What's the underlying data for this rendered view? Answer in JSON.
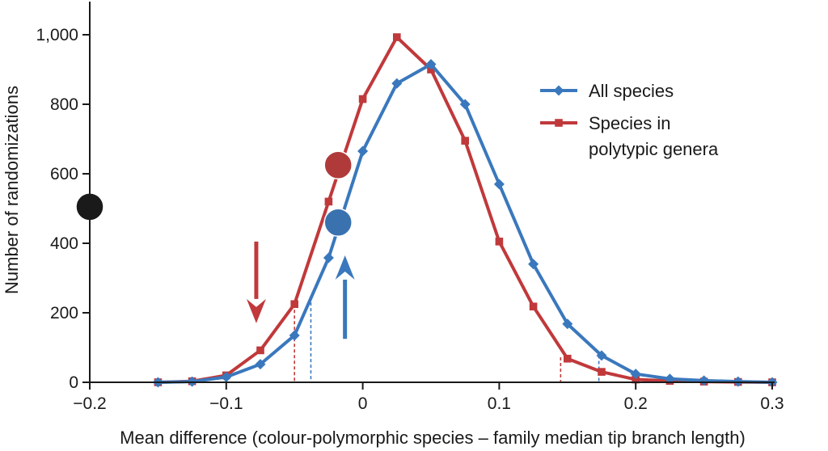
{
  "chart_data": {
    "type": "line",
    "xlabel": "Mean difference (colour-polymorphic species – family median tip branch length)",
    "ylabel": "Number of randomizations",
    "xlim": [
      -0.2,
      0.3
    ],
    "ylim": [
      0,
      1000
    ],
    "x_ticks": [
      -0.2,
      -0.1,
      0,
      0.1,
      0.2,
      0.3
    ],
    "x_tick_labels": [
      "−0.2",
      "−0.1",
      "0",
      "0.1",
      "0.2",
      "0.3"
    ],
    "y_ticks": [
      0,
      200,
      400,
      600,
      800,
      1000
    ],
    "y_tick_labels": [
      "0",
      "200",
      "400",
      "600",
      "800",
      "1,000"
    ],
    "grid": false,
    "legend_position": "right",
    "series": [
      {
        "name": "All species",
        "color": "#3a78bd",
        "marker": "diamond",
        "x": [
          -0.15,
          -0.125,
          -0.1,
          -0.075,
          -0.05,
          -0.025,
          0,
          0.025,
          0.05,
          0.075,
          0.1,
          0.125,
          0.15,
          0.175,
          0.2,
          0.225,
          0.25,
          0.275,
          0.3
        ],
        "y": [
          0,
          2,
          15,
          52,
          135,
          358,
          665,
          860,
          915,
          800,
          570,
          340,
          168,
          77,
          24,
          10,
          5,
          2,
          0
        ]
      },
      {
        "name": "Species in polytypic genera",
        "legend_lines": [
          "Species in",
          "polytypic genera"
        ],
        "color": "#c0393b",
        "marker": "square",
        "x": [
          -0.15,
          -0.125,
          -0.1,
          -0.075,
          -0.05,
          -0.025,
          0,
          0.025,
          0.05,
          0.075,
          0.1,
          0.125,
          0.15,
          0.175,
          0.2,
          0.225,
          0.25,
          0.275,
          0.3
        ],
        "y": [
          0,
          3,
          20,
          92,
          225,
          520,
          815,
          993,
          900,
          695,
          405,
          218,
          68,
          30,
          8,
          4,
          2,
          1,
          0
        ]
      }
    ],
    "reference_lines": [
      {
        "x": -0.05,
        "y": 225,
        "color": "#c0393b"
      },
      {
        "x": -0.038,
        "y": 230,
        "color": "#3a78bd"
      },
      {
        "x": 0.145,
        "y": 72,
        "color": "#c0393b"
      },
      {
        "x": 0.173,
        "y": 78,
        "color": "#3a78bd"
      }
    ],
    "observed_points": [
      {
        "x": -0.2,
        "y": 505,
        "color": "#1a1a1a"
      },
      {
        "x": -0.018,
        "y": 625,
        "color": "#b03a3a"
      },
      {
        "x": -0.018,
        "y": 460,
        "color": "#3a72b0"
      }
    ],
    "arrows": [
      {
        "direction": "down",
        "x": -0.078,
        "y_from": 405,
        "y_to": 170,
        "color": "#c0393b"
      },
      {
        "direction": "up",
        "x": -0.013,
        "y_from": 125,
        "y_to": 365,
        "color": "#3a78bd"
      }
    ]
  }
}
